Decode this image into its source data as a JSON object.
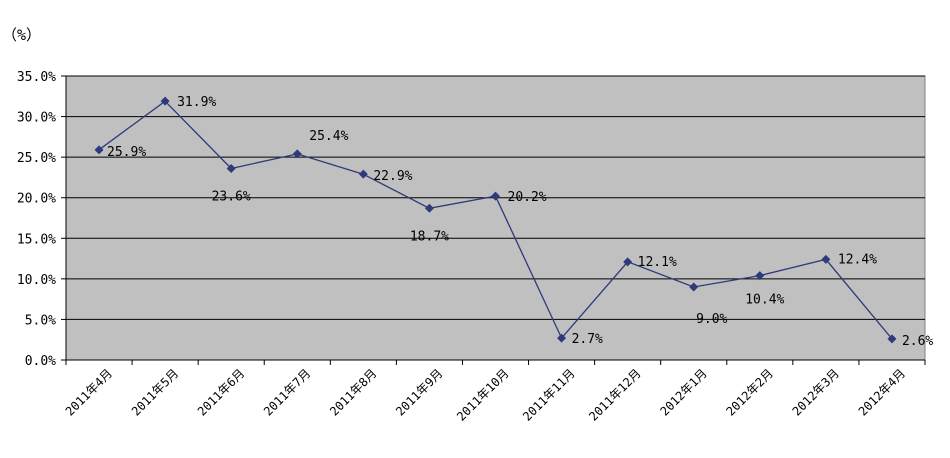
{
  "chart_data": {
    "type": "line",
    "unit_label": "（%）",
    "categories": [
      "2011年4月",
      "2011年5月",
      "2011年6月",
      "2011年7月",
      "2011年8月",
      "2011年9月",
      "2011年10月",
      "2011年11月",
      "2011年12月",
      "2012年1月",
      "2012年2月",
      "2012年3月",
      "2012年4月"
    ],
    "values": [
      25.9,
      31.9,
      23.6,
      25.4,
      22.9,
      18.7,
      20.2,
      2.7,
      12.1,
      9.0,
      10.4,
      12.4,
      2.6
    ],
    "data_labels": [
      "25.9%",
      "31.9%",
      "23.6%",
      "25.4%",
      "22.9%",
      "18.7%",
      "20.2%",
      "2.7%",
      "12.1%",
      "9.0%",
      "10.4%",
      "12.4%",
      "2.6%"
    ],
    "yticks": [
      0,
      5,
      10,
      15,
      20,
      25,
      30,
      35
    ],
    "ytick_labels": [
      "0.0%",
      "5.0%",
      "10.0%",
      "15.0%",
      "20.0%",
      "25.0%",
      "30.0%",
      "35.0%"
    ],
    "ylim": [
      0,
      35
    ],
    "grid": true,
    "colors": {
      "plot_bg": "#c0c0c0",
      "line": "#2e3a7a",
      "marker": "#2e3a7a",
      "grid": "#000000"
    }
  }
}
